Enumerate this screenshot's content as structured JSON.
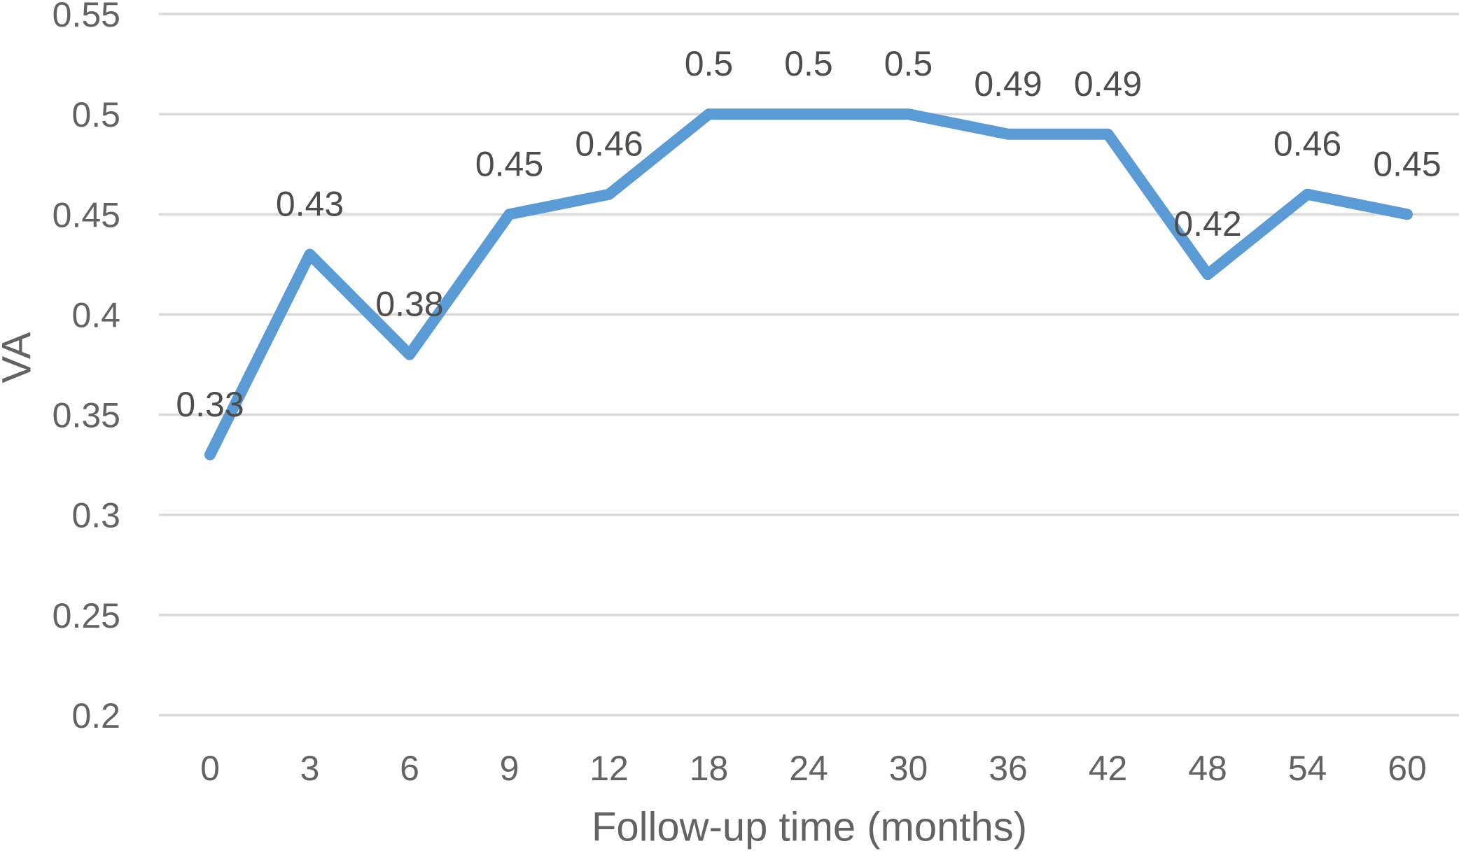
{
  "chart_data": {
    "type": "line",
    "title": "",
    "xlabel": "Follow-up time (months)",
    "ylabel": "VA",
    "categories": [
      "0",
      "3",
      "6",
      "9",
      "12",
      "18",
      "24",
      "30",
      "36",
      "42",
      "48",
      "54",
      "60"
    ],
    "series": [
      {
        "name": "VA",
        "values": [
          0.33,
          0.43,
          0.38,
          0.45,
          0.46,
          0.5,
          0.5,
          0.5,
          0.49,
          0.49,
          0.42,
          0.46,
          0.45
        ],
        "data_labels": [
          "0.33",
          "0.43",
          "0.38",
          "0.45",
          "0.46",
          "0.5",
          "0.5",
          "0.5",
          "0.49",
          "0.49",
          "0.42",
          "0.46",
          "0.45"
        ]
      }
    ],
    "y_ticks": [
      "0.55",
      "0.5",
      "0.45",
      "0.4",
      "0.35",
      "0.3",
      "0.25",
      "0.2"
    ],
    "ylim": [
      0.2,
      0.55
    ],
    "y_tick_step": 0.05,
    "grid": true,
    "legend": "none",
    "colors": {
      "line": "#5B9BD5",
      "gridline": "#D9D9D9",
      "tick_label": "#636363",
      "data_label": "#4d4d4d",
      "axis_title": "#636363",
      "background": "#FFFFFF"
    }
  }
}
